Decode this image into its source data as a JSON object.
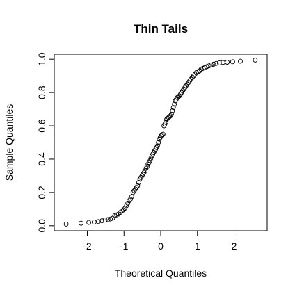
{
  "chart_data": {
    "type": "scatter",
    "title": "Thin Tails",
    "xlabel": "Theoretical Quantiles",
    "ylabel": "Sample Quantiles",
    "xlim": [
      -2.9,
      2.9
    ],
    "ylim": [
      -0.03,
      1.03
    ],
    "xticks": [
      -2,
      -1,
      0,
      1,
      2
    ],
    "xtick_labels": [
      "-2",
      "-1",
      "0",
      "1",
      "2"
    ],
    "yticks": [
      0.0,
      0.2,
      0.4,
      0.6,
      0.8,
      1.0
    ],
    "ytick_labels": [
      "0.0",
      "0.2",
      "0.4",
      "0.6",
      "0.8",
      "1.0"
    ],
    "grid": false,
    "marker": "open-circle",
    "n_points": 100,
    "y": [
      0.01,
      0.015,
      0.02,
      0.022,
      0.025,
      0.03,
      0.034,
      0.037,
      0.04,
      0.045,
      0.06,
      0.065,
      0.07,
      0.08,
      0.09,
      0.095,
      0.105,
      0.12,
      0.135,
      0.15,
      0.16,
      0.175,
      0.2,
      0.21,
      0.22,
      0.23,
      0.24,
      0.26,
      0.28,
      0.29,
      0.3,
      0.31,
      0.32,
      0.33,
      0.345,
      0.355,
      0.37,
      0.38,
      0.39,
      0.405,
      0.42,
      0.43,
      0.44,
      0.45,
      0.46,
      0.47,
      0.48,
      0.5,
      0.52,
      0.53,
      0.54,
      0.545,
      0.55,
      0.6,
      0.61,
      0.62,
      0.64,
      0.645,
      0.65,
      0.655,
      0.66,
      0.67,
      0.69,
      0.71,
      0.73,
      0.75,
      0.76,
      0.77,
      0.775,
      0.78,
      0.79,
      0.8,
      0.81,
      0.82,
      0.83,
      0.84,
      0.85,
      0.86,
      0.87,
      0.88,
      0.89,
      0.9,
      0.91,
      0.92,
      0.925,
      0.93,
      0.94,
      0.945,
      0.95,
      0.955,
      0.96,
      0.965,
      0.97,
      0.975,
      0.978,
      0.98,
      0.982,
      0.985,
      0.988,
      0.995
    ]
  }
}
